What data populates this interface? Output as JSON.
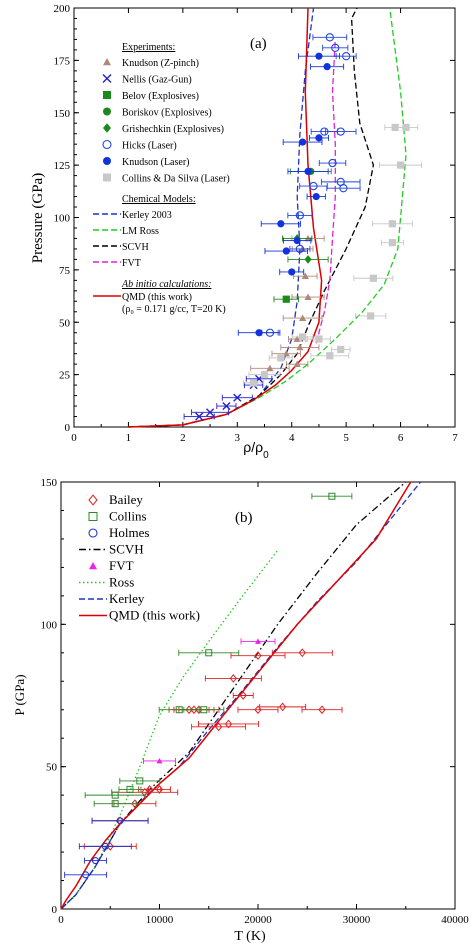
{
  "chart_data": [
    {
      "type": "scatter",
      "panel_label": "(a)",
      "xlabel": "ρ/ρ",
      "xlabel_sub": "0",
      "ylabel": "Pressure (GPa)",
      "xlim": [
        0,
        7
      ],
      "ylim": [
        0,
        200
      ],
      "xticks": [
        "0",
        "1",
        "2",
        "3",
        "4",
        "5",
        "6",
        "7"
      ],
      "yticks": [
        "0",
        "25",
        "50",
        "75",
        "100",
        "125",
        "150",
        "175",
        "200"
      ],
      "legend": {
        "position": "top-left",
        "experiments_header": "Experiments:",
        "models_header": "Chemical Models:",
        "abinitio_header": "Ab initio calculations:",
        "qmd_note": "(ρ₀ = 0.171 g/cc, T=20 K)"
      },
      "points": [
        {
          "name": "Knudson (Z-pinch)",
          "marker": "triangle",
          "color": "#b08878",
          "points": [
            [
              4.1,
              42
            ],
            [
              4.2,
              52
            ],
            [
              4.3,
              62
            ],
            [
              4.25,
              72
            ],
            [
              4.2,
              85
            ],
            [
              4.3,
              90
            ],
            [
              4.1,
              30
            ],
            [
              4.15,
              38
            ],
            [
              3.6,
              28
            ],
            [
              3.9,
              35
            ]
          ]
        },
        {
          "name": "Nellis (Gaz-Gun)",
          "marker": "x",
          "color": "#2222cc",
          "points": [
            [
              2.3,
              5
            ],
            [
              2.5,
              7
            ],
            [
              2.8,
              10
            ],
            [
              3.0,
              14
            ],
            [
              3.3,
              20
            ],
            [
              3.4,
              23
            ]
          ]
        },
        {
          "name": "Belov (Explosives)",
          "marker": "square",
          "color": "#1a8a1a",
          "points": [
            [
              3.9,
              61
            ]
          ]
        },
        {
          "name": "Boriskov (Explosives)",
          "marker": "circle",
          "color": "#1a8a1a",
          "points": [
            [
              4.35,
              122
            ]
          ]
        },
        {
          "name": "Grishechkin (Explosives)",
          "marker": "diamond",
          "color": "#1a8a1a",
          "points": [
            [
              4.3,
              80
            ],
            [
              4.1,
              90
            ]
          ]
        },
        {
          "name": "Hicks (Laser)",
          "marker": "circle-open",
          "color": "#2244dd",
          "points": [
            [
              4.7,
              186
            ],
            [
              4.8,
              181
            ],
            [
              5.0,
              177
            ],
            [
              4.6,
              141
            ],
            [
              4.9,
              141
            ],
            [
              4.75,
              126
            ],
            [
              4.9,
              117
            ],
            [
              4.95,
              114
            ],
            [
              4.15,
              101
            ],
            [
              4.15,
              85
            ],
            [
              3.6,
              45
            ],
            [
              4.4,
              115
            ]
          ]
        },
        {
          "name": "Knudson (Laser)",
          "marker": "circle",
          "color": "#1133dd",
          "points": [
            [
              4.2,
              136
            ],
            [
              4.5,
              138
            ],
            [
              4.3,
              122
            ],
            [
              4.45,
              110
            ],
            [
              3.8,
              97
            ],
            [
              4.1,
              89
            ],
            [
              3.9,
              84
            ],
            [
              4.0,
              74
            ],
            [
              3.4,
              45
            ],
            [
              4.5,
              177
            ],
            [
              4.65,
              172
            ]
          ]
        },
        {
          "name": "Collins & Da Silva (Laser)",
          "marker": "square",
          "color": "#c8c8c8",
          "points": [
            [
              5.9,
              143
            ],
            [
              6.1,
              143
            ],
            [
              6.0,
              125
            ],
            [
              5.85,
              97
            ],
            [
              5.85,
              88
            ],
            [
              5.5,
              71
            ],
            [
              5.45,
              53
            ],
            [
              4.9,
              37
            ],
            [
              4.7,
              34
            ],
            [
              4.5,
              42
            ],
            [
              4.2,
              43
            ],
            [
              3.8,
              33
            ],
            [
              3.5,
              25
            ],
            [
              3.3,
              21
            ]
          ]
        }
      ],
      "lines": [
        {
          "name": "Kerley 2003",
          "dash": "dashed",
          "color": "#1a33cc",
          "points": [
            [
              1.0,
              0
            ],
            [
              2.0,
              1
            ],
            [
              2.8,
              6
            ],
            [
              3.4,
              15
            ],
            [
              3.8,
              28
            ],
            [
              4.0,
              42
            ],
            [
              4.1,
              60
            ],
            [
              4.15,
              85
            ],
            [
              4.1,
              110
            ],
            [
              4.15,
              140
            ],
            [
              4.25,
              170
            ],
            [
              4.4,
              200
            ]
          ]
        },
        {
          "name": "LM Ross",
          "dash": "dashed",
          "color": "#22cc22",
          "points": [
            [
              1.0,
              0
            ],
            [
              2.0,
              1
            ],
            [
              2.8,
              6
            ],
            [
              3.4,
              14
            ],
            [
              3.9,
              22
            ],
            [
              4.3,
              30
            ],
            [
              4.8,
              42
            ],
            [
              5.3,
              55
            ],
            [
              5.7,
              68
            ],
            [
              5.95,
              85
            ],
            [
              6.0,
              100
            ],
            [
              6.1,
              130
            ],
            [
              6.0,
              160
            ],
            [
              5.8,
              200
            ]
          ]
        },
        {
          "name": "SCVH",
          "dash": "dashed",
          "color": "#000000",
          "points": [
            [
              1.0,
              0
            ],
            [
              2.0,
              1
            ],
            [
              2.8,
              6
            ],
            [
              3.4,
              15
            ],
            [
              3.8,
              25
            ],
            [
              4.1,
              35
            ],
            [
              4.3,
              48
            ],
            [
              4.6,
              65
            ],
            [
              5.0,
              85
            ],
            [
              5.35,
              105
            ],
            [
              5.5,
              125
            ],
            [
              5.25,
              145
            ],
            [
              5.15,
              170
            ],
            [
              5.1,
              195
            ],
            [
              5.2,
              200
            ]
          ]
        },
        {
          "name": "FVT",
          "dash": "dashed",
          "color": "#dd22dd",
          "points": [
            [
              4.45,
              40
            ],
            [
              4.6,
              55
            ],
            [
              4.7,
              70
            ],
            [
              4.75,
              90
            ],
            [
              4.8,
              110
            ],
            [
              4.8,
              135
            ],
            [
              4.75,
              160
            ],
            [
              4.8,
              185
            ]
          ]
        },
        {
          "name": "QMD (this work)",
          "dash": "solid",
          "color": "#dd0000",
          "points": [
            [
              1.0,
              0
            ],
            [
              2.0,
              1
            ],
            [
              2.8,
              6
            ],
            [
              3.3,
              13
            ],
            [
              3.7,
              20
            ],
            [
              4.0,
              27
            ],
            [
              4.3,
              36
            ],
            [
              4.5,
              50
            ],
            [
              4.55,
              70
            ],
            [
              4.4,
              95
            ],
            [
              4.3,
              125
            ],
            [
              4.25,
              160
            ],
            [
              4.3,
              200
            ]
          ]
        }
      ]
    },
    {
      "type": "scatter",
      "panel_label": "(b)",
      "xlabel": "T (K)",
      "ylabel": "P (GPa)",
      "xlim": [
        0,
        40000
      ],
      "ylim": [
        0,
        150
      ],
      "xticks": [
        "0",
        "10000",
        "20000",
        "30000",
        "40000"
      ],
      "yticks": [
        "0",
        "50",
        "100",
        "150"
      ],
      "legend": {
        "position": "top-left"
      },
      "points": [
        {
          "name": "Bailey",
          "marker": "diamond-open",
          "color": "#dd2222",
          "points": [
            [
              5000,
              22
            ],
            [
              6000,
              31
            ],
            [
              7500,
              37
            ],
            [
              8500,
              41
            ],
            [
              9000,
              42
            ],
            [
              10000,
              42
            ],
            [
              13000,
              70
            ],
            [
              13500,
              70
            ],
            [
              14000,
              70
            ],
            [
              16000,
              64
            ],
            [
              17000,
              65
            ],
            [
              17500,
              81
            ],
            [
              18500,
              75
            ],
            [
              20000,
              89
            ],
            [
              20000,
              70
            ],
            [
              22500,
              71
            ],
            [
              24500,
              90
            ],
            [
              26500,
              70
            ]
          ]
        },
        {
          "name": "Collins",
          "marker": "square-open",
          "color": "#2a8a2a",
          "points": [
            [
              5500,
              37
            ],
            [
              5500,
              40
            ],
            [
              7000,
              42
            ],
            [
              8000,
              45
            ],
            [
              12000,
              70
            ],
            [
              14500,
              70
            ],
            [
              15000,
              90
            ],
            [
              27500,
              145
            ]
          ]
        },
        {
          "name": "Holmes",
          "marker": "circle-open",
          "color": "#2233cc",
          "points": [
            [
              2500,
              12
            ],
            [
              3500,
              17
            ],
            [
              4500,
              22
            ],
            [
              6000,
              31
            ]
          ]
        },
        {
          "name": "FVT",
          "marker": "triangle",
          "color": "#ee22ee",
          "points": [
            [
              10000,
              52
            ],
            [
              20000,
              94
            ]
          ]
        }
      ],
      "lines": [
        {
          "name": "SCVH",
          "dash": "dashdot",
          "color": "#000000",
          "points": [
            [
              0,
              0
            ],
            [
              1500,
              5
            ],
            [
              3500,
              15
            ],
            [
              6000,
              30
            ],
            [
              9000,
              42
            ],
            [
              13000,
              55
            ],
            [
              15000,
              65
            ],
            [
              18000,
              80
            ],
            [
              22000,
              100
            ],
            [
              26000,
              118
            ],
            [
              30000,
              135
            ],
            [
              35000,
              150
            ]
          ]
        },
        {
          "name": "Ross",
          "dash": "dotted",
          "color": "#22cc22",
          "points": [
            [
              0,
              0
            ],
            [
              1500,
              5
            ],
            [
              3500,
              15
            ],
            [
              6000,
              33
            ],
            [
              8000,
              50
            ],
            [
              10000,
              68
            ],
            [
              12500,
              82
            ],
            [
              15000,
              94
            ],
            [
              18000,
              108
            ],
            [
              22000,
              126
            ]
          ]
        },
        {
          "name": "Kerley",
          "dash": "dashed",
          "color": "#1a33cc",
          "points": [
            [
              0,
              0
            ],
            [
              1500,
              5
            ],
            [
              3500,
              15
            ],
            [
              6000,
              30
            ],
            [
              9000,
              41
            ],
            [
              12000,
              50
            ],
            [
              15000,
              63
            ],
            [
              18000,
              75
            ],
            [
              22000,
              92
            ],
            [
              26000,
              108
            ],
            [
              30000,
              122
            ],
            [
              36500,
              150
            ]
          ]
        },
        {
          "name": "QMD (this work)",
          "dash": "solid",
          "color": "#dd0000",
          "points": [
            [
              0,
              0
            ],
            [
              500,
              3
            ],
            [
              1500,
              8
            ],
            [
              3000,
              17
            ],
            [
              4500,
              24
            ],
            [
              6000,
              30
            ],
            [
              8000,
              37
            ],
            [
              10000,
              44
            ],
            [
              13000,
              53
            ],
            [
              16000,
              66
            ],
            [
              20000,
              83
            ],
            [
              24000,
              100
            ],
            [
              28000,
              115
            ],
            [
              32000,
              130
            ],
            [
              35500,
              150
            ]
          ]
        }
      ]
    }
  ]
}
